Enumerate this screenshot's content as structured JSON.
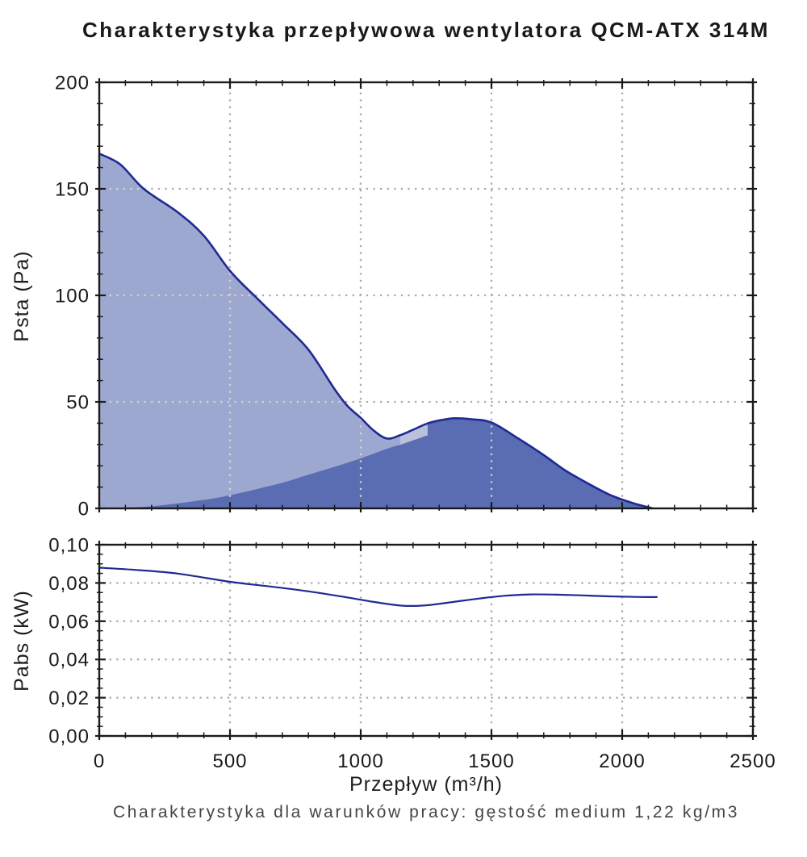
{
  "title": "Charakterystyka przepływowa wentylatora QCM-ATX 314M",
  "footer": "Charakterystyka dla warunków pracy: gęstość medium 1,22 kg/m3",
  "x_axis": {
    "label": "Przepływ (m³/h)",
    "min": 0,
    "max": 2500,
    "tick_values": [
      0,
      500,
      1000,
      1500,
      2000,
      2500
    ],
    "tick_labels": [
      "0",
      "500",
      "1000",
      "1500",
      "2000",
      "2500"
    ],
    "minor_step": 100,
    "gridline_values": [
      500,
      1000,
      1500,
      2000
    ]
  },
  "colors": {
    "curve": "#1f2a94",
    "area_light": "#9da8d0",
    "area_dark": "#5a6cb2",
    "area_notch": "#b9c1dc",
    "grid": "#a7a7a7",
    "grid_over_fill": "#dcd6c4",
    "axis": "#1a1a1a"
  },
  "chart_data": [
    {
      "type": "area",
      "name": "fan-static-pressure-curve",
      "ylabel": "Psta (Pa)",
      "xlabel": "Przepływ (m³/h)",
      "xlim": [
        0,
        2500
      ],
      "ylim": [
        0,
        200
      ],
      "grid": "dotted",
      "y_tick_values": [
        0,
        50,
        100,
        150,
        200
      ],
      "y_tick_labels": [
        "0",
        "50",
        "100",
        "150",
        "200"
      ],
      "y_minor_step": 10,
      "y_gridline_values": [
        50,
        100,
        150
      ],
      "series": [
        {
          "name": "fan-pressure-curve-Psta",
          "points": [
            [
              0,
              166.5
            ],
            [
              80,
              161.5
            ],
            [
              170,
              150
            ],
            [
              300,
              139
            ],
            [
              400,
              128
            ],
            [
              500,
              111.5
            ],
            [
              600,
              99
            ],
            [
              700,
              87
            ],
            [
              800,
              74.5
            ],
            [
              900,
              56
            ],
            [
              950,
              48
            ],
            [
              1000,
              42.5
            ],
            [
              1050,
              36.5
            ],
            [
              1100,
              32.8
            ],
            [
              1150,
              34.3
            ],
            [
              1200,
              36.9
            ],
            [
              1256,
              39.9
            ],
            [
              1310,
              41.5
            ],
            [
              1360,
              42.3
            ],
            [
              1420,
              41.9
            ],
            [
              1500,
              40.3
            ],
            [
              1600,
              33
            ],
            [
              1700,
              25
            ],
            [
              1780,
              18
            ],
            [
              1850,
              13
            ],
            [
              1950,
              6.5
            ],
            [
              2040,
              2.5
            ],
            [
              2118,
              0
            ]
          ]
        },
        {
          "name": "working-area-lower-boundary",
          "points": [
            [
              0,
              0
            ],
            [
              200,
              1
            ],
            [
              400,
              4
            ],
            [
              500,
              6.2
            ],
            [
              600,
              9
            ],
            [
              700,
              12
            ],
            [
              800,
              15.8
            ],
            [
              900,
              19.5
            ],
            [
              1000,
              23.5
            ],
            [
              1100,
              28
            ],
            [
              1150,
              29.8
            ],
            [
              1200,
              31.9
            ],
            [
              1256,
              34.3
            ]
          ]
        }
      ],
      "regions": {
        "light_area_x_range": [
          0,
          1150
        ],
        "notch_x_range": [
          1150,
          1256
        ],
        "dark_area_x_range": [
          0,
          2118
        ]
      }
    },
    {
      "type": "line",
      "name": "absorbed-power-curve",
      "ylabel": "Pabs (kW)",
      "xlim": [
        0,
        2500
      ],
      "ylim": [
        0,
        0.1
      ],
      "grid": "dotted",
      "y_tick_values": [
        0,
        0.02,
        0.04,
        0.06,
        0.08,
        0.1
      ],
      "y_tick_labels": [
        "0,00",
        "0,02",
        "0,04",
        "0,06",
        "0,08",
        "0,10"
      ],
      "y_minor_step": 0.005,
      "y_gridline_values": [
        0.02,
        0.04,
        0.06,
        0.08
      ],
      "series": [
        {
          "name": "absorbed-power-Pabs",
          "points": [
            [
              0,
              0.088
            ],
            [
              150,
              0.0867
            ],
            [
              300,
              0.0849
            ],
            [
              500,
              0.0806
            ],
            [
              650,
              0.0782
            ],
            [
              800,
              0.0756
            ],
            [
              950,
              0.0724
            ],
            [
              1050,
              0.0701
            ],
            [
              1160,
              0.0681
            ],
            [
              1250,
              0.0683
            ],
            [
              1350,
              0.07
            ],
            [
              1450,
              0.0718
            ],
            [
              1550,
              0.0733
            ],
            [
              1650,
              0.074
            ],
            [
              1750,
              0.0739
            ],
            [
              1850,
              0.0735
            ],
            [
              1950,
              0.073
            ],
            [
              2050,
              0.0727
            ],
            [
              2135,
              0.0726
            ]
          ]
        }
      ]
    }
  ]
}
